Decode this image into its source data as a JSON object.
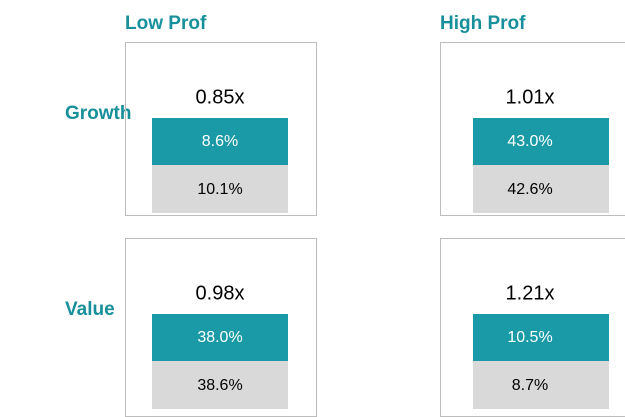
{
  "columns": [
    "Low Prof",
    "High Prof"
  ],
  "rows": [
    {
      "label": "Growth",
      "cells": [
        {
          "ratio": "0.85x",
          "top": "8.6%",
          "bottom": "10.1%"
        },
        {
          "ratio": "1.01x",
          "top": "43.0%",
          "bottom": "42.6%"
        }
      ]
    },
    {
      "label": "Value",
      "cells": [
        {
          "ratio": "0.98x",
          "top": "38.0%",
          "bottom": "38.6%"
        },
        {
          "ratio": "1.21x",
          "top": "10.5%",
          "bottom": "8.7%"
        }
      ]
    }
  ]
}
